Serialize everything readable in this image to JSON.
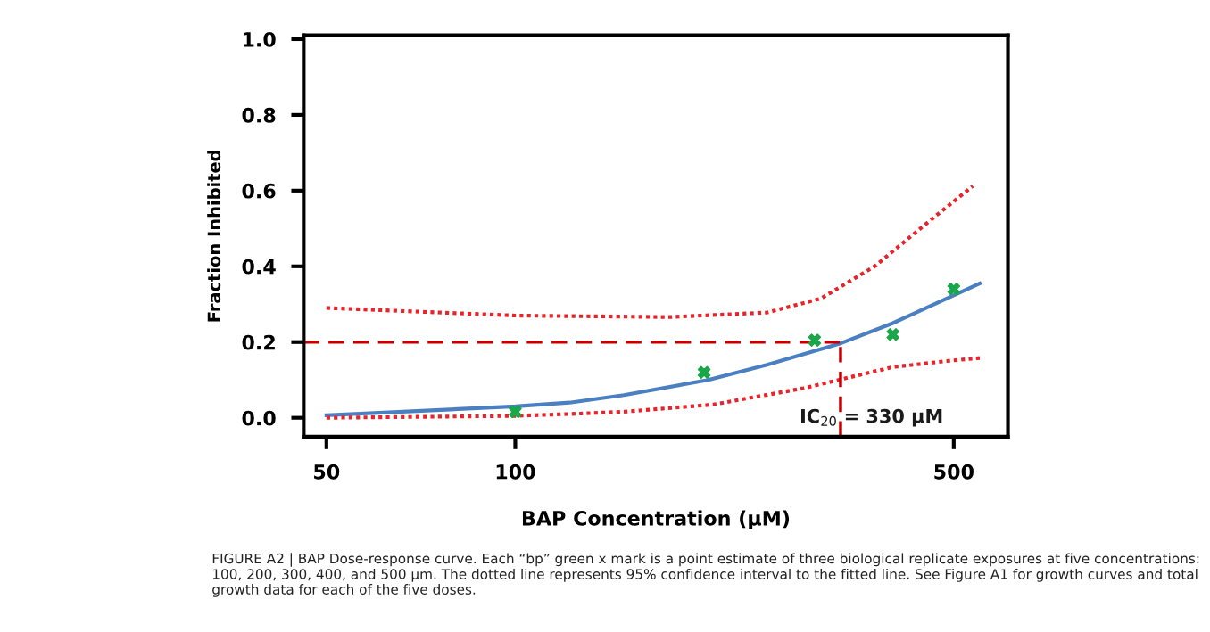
{
  "chart_data": {
    "type": "line",
    "xlabel": "BAP Concentration (μM)",
    "ylabel": "Fraction Inhibited",
    "log": "x",
    "xlim": [
      46,
      610
    ],
    "xticks": [
      50,
      100,
      500
    ],
    "ylim": [
      -0.05,
      1.01
    ],
    "yticks": [
      {
        "value": 0,
        "label": "0.0"
      },
      {
        "value": 0.2,
        "label": "0.2"
      },
      {
        "value": 0.4,
        "label": "0.4"
      },
      {
        "value": 0.6,
        "label": "0.6"
      },
      {
        "value": 0.8,
        "label": "0.8"
      },
      {
        "value": 1,
        "label": "1.0"
      }
    ],
    "grid": false,
    "series": [
      {
        "color": "#4a7fc1",
        "line_style": "solid",
        "marker": "none",
        "x": [
          50,
          100,
          122,
          149,
          203,
          252,
          328,
          400,
          550
        ],
        "values": [
          0.007,
          0.03,
          0.04,
          0.06,
          0.1,
          0.14,
          0.195,
          0.25,
          0.355
        ]
      },
      {
        "color": "#e8242a",
        "line_style": "dotted",
        "marker": "none",
        "x": [
          50,
          100,
          176,
          252,
          307,
          374,
          456,
          536
        ],
        "values": [
          0.29,
          0.27,
          0.266,
          0.278,
          0.315,
          0.4,
          0.518,
          0.612
        ]
      },
      {
        "color": "#e8242a",
        "line_style": "dotted",
        "marker": "none",
        "x": [
          50,
          100,
          122,
          149,
          207,
          288,
          400,
          488,
          550
        ],
        "values": [
          0.0,
          0.005,
          0.01,
          0.016,
          0.035,
          0.078,
          0.134,
          0.15,
          0.158
        ]
      },
      {
        "type": "scatter",
        "color": "#1aa64a",
        "marker": "cross",
        "x": [
          100,
          200,
          300,
          400,
          500
        ],
        "values": [
          0.016,
          0.12,
          0.205,
          0.22,
          0.34
        ]
      }
    ],
    "ref_lines": [
      {
        "axis": "y",
        "value": 0.2,
        "color": "#c00000",
        "line_style": "dashed"
      },
      {
        "axis": "x",
        "value": 330,
        "color": "#c00000",
        "line_style": "dashed"
      }
    ],
    "annotations": [
      {
        "text": "IC$_{20}$ = 330 μM",
        "x": 330,
        "y": 0.0
      },
      "FIGURE A2 | BAP Dose-response curve. Each “bp” green x mark is a point estimate of three biological replicate exposures at five concentrations: 100, 200, 300, 400, and 500 μm. The dotted line represents 95% confidence interval to the fitted line. See Figure A1 for growth curves and total growth data for each of the five doses."
    ]
  }
}
